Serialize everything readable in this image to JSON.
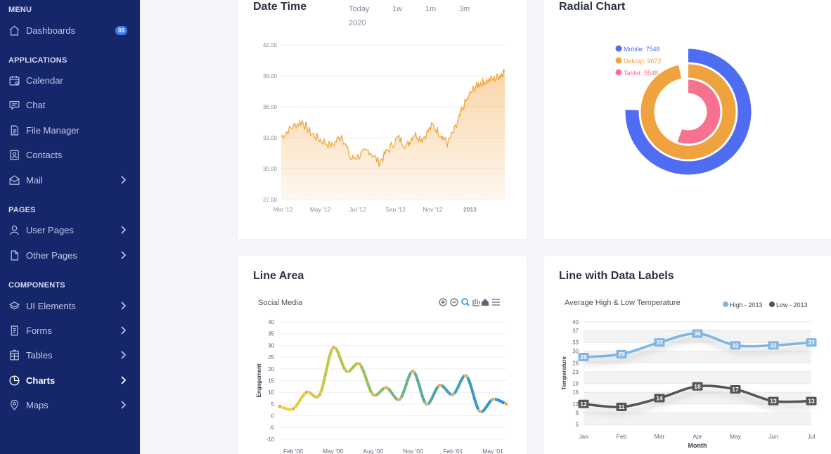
{
  "sidebar": {
    "sections": [
      {
        "title": "MENU",
        "items": [
          {
            "label": "Dashboards",
            "badge": "03",
            "icon": "home-icon"
          }
        ]
      },
      {
        "title": "APPLICATIONS",
        "items": [
          {
            "label": "Calendar",
            "icon": "calendar-icon"
          },
          {
            "label": "Chat",
            "icon": "chat-icon"
          },
          {
            "label": "File Manager",
            "icon": "file-icon"
          },
          {
            "label": "Contacts",
            "icon": "contacts-icon"
          },
          {
            "label": "Mail",
            "icon": "mail-icon"
          }
        ]
      },
      {
        "title": "PAGES",
        "items": [
          {
            "label": "User Pages",
            "icon": "user-icon"
          },
          {
            "label": "Other Pages",
            "icon": "page-icon"
          }
        ]
      },
      {
        "title": "COMPONENTS",
        "items": [
          {
            "label": "UI Elements",
            "icon": "layers-icon"
          },
          {
            "label": "Forms",
            "icon": "form-icon"
          },
          {
            "label": "Tables",
            "icon": "table-icon"
          },
          {
            "label": "Charts",
            "icon": "pie-icon",
            "active": true
          },
          {
            "label": "Maps",
            "icon": "map-pin-icon"
          }
        ]
      }
    ]
  },
  "cards": {
    "datetime": {
      "title": "Date Time",
      "toolbar": [
        "Today",
        "1w",
        "1m",
        "3m",
        "2020"
      ]
    },
    "radial": {
      "title": "Radial Chart"
    },
    "linearea": {
      "title": "Line Area"
    },
    "linelabels": {
      "title": "Line with Data Labels"
    }
  },
  "chart_data": [
    {
      "type": "area",
      "title": "",
      "xlabel": "",
      "ylabel": "",
      "x_ticks": [
        "Mar '12",
        "May '12",
        "Jul '12",
        "Sep '12",
        "Nov '12",
        "2013"
      ],
      "y_ticks": [
        "27.00",
        "30.00",
        "33.00",
        "36.00",
        "39.00",
        "42.00"
      ],
      "ylim": [
        27,
        42
      ],
      "x_start": "2012-02-27",
      "x_end": "2013-02-27",
      "color": "#f2a23a",
      "anchors": [
        [
          "2012-02-27",
          33.1
        ],
        [
          "2012-03-15",
          34.0
        ],
        [
          "2012-04-01",
          34.6
        ],
        [
          "2012-04-15",
          33.5
        ],
        [
          "2012-05-01",
          32.8
        ],
        [
          "2012-05-20",
          32.2
        ],
        [
          "2012-06-05",
          33.3
        ],
        [
          "2012-06-20",
          30.9
        ],
        [
          "2012-07-05",
          31.3
        ],
        [
          "2012-07-20",
          31.8
        ],
        [
          "2012-08-05",
          30.6
        ],
        [
          "2012-08-20",
          31.8
        ],
        [
          "2012-09-05",
          33.0
        ],
        [
          "2012-09-20",
          32.2
        ],
        [
          "2012-10-01",
          33.4
        ],
        [
          "2012-10-15",
          32.9
        ],
        [
          "2012-11-01",
          34.2
        ],
        [
          "2012-11-15",
          33.3
        ],
        [
          "2012-11-25",
          32.4
        ],
        [
          "2012-12-10",
          34.1
        ],
        [
          "2012-12-20",
          35.9
        ],
        [
          "2013-01-05",
          37.6
        ],
        [
          "2013-01-15",
          38.2
        ],
        [
          "2013-01-25",
          38.5
        ],
        [
          "2013-02-10",
          38.7
        ],
        [
          "2013-02-20",
          39.1
        ],
        [
          "2013-02-27",
          39.6
        ]
      ]
    },
    {
      "type": "pie",
      "subtype": "radialBar",
      "series": [
        {
          "name": "Mobile",
          "value": 7548,
          "color": "#4f6df2",
          "label": "Mobile: 7548"
        },
        {
          "name": "Dektop",
          "value": 9672,
          "color": "#f0a23f",
          "label": "Dektop: 9672"
        },
        {
          "name": "Tablet",
          "value": 5548,
          "color": "#f6728e",
          "label": "Tablet: 5548"
        }
      ],
      "max": 10000,
      "legend": "top-left"
    },
    {
      "type": "line",
      "title": "Social Media",
      "xlabel": "",
      "ylabel": "Engagement",
      "x": [
        "Jan '00",
        "Feb '00",
        "Mar '00",
        "Apr '00",
        "May '00",
        "Jun '00",
        "Jul '00",
        "Aug '00",
        "Sep '00",
        "Oct '00",
        "Nov '00",
        "Dec '00",
        "Jan '01",
        "Feb '01",
        "Mar '01",
        "Apr '01",
        "May '01",
        "Jun '01"
      ],
      "x_tick_labels": [
        "Feb '00",
        "May '00",
        "Aug '00",
        "Nov '00",
        "Feb '01",
        "May '01"
      ],
      "values": [
        4,
        3,
        10,
        9,
        29,
        19,
        22,
        9,
        12,
        7,
        19,
        5,
        13,
        9,
        17,
        2,
        7,
        5
      ],
      "y_ticks": [
        -10,
        -5,
        0,
        5,
        10,
        15,
        20,
        25,
        30,
        35,
        40
      ],
      "ylim": [
        -10,
        40
      ],
      "gradient": [
        "#f5d13a",
        "#a5c44a",
        "#4fa8a8",
        "#2b8fd9"
      ],
      "toolbar_icons": [
        "zoom-in-icon",
        "zoom-out-icon",
        "search-zoom-icon",
        "pan-hand-icon",
        "home-reset-icon",
        "menu-icon"
      ]
    },
    {
      "type": "line",
      "title": "Average High & Low Temperature",
      "xlabel": "Month",
      "ylabel": "Temperature",
      "categories": [
        "Jan",
        "Feb",
        "Mar",
        "Apr",
        "May",
        "Jun",
        "Jul"
      ],
      "series": [
        {
          "name": "High - 2013",
          "values": [
            28,
            29,
            33,
            36,
            32,
            32,
            33
          ],
          "color": "#7fb4e6"
        },
        {
          "name": "Low - 2013",
          "values": [
            12,
            11,
            14,
            18,
            17,
            13,
            13
          ],
          "color": "#555555"
        }
      ],
      "y_ticks": [
        5,
        9,
        12,
        16,
        19,
        23,
        26,
        30,
        33,
        37,
        40
      ],
      "ylim": [
        5,
        40
      ],
      "legend": "top-right"
    }
  ]
}
